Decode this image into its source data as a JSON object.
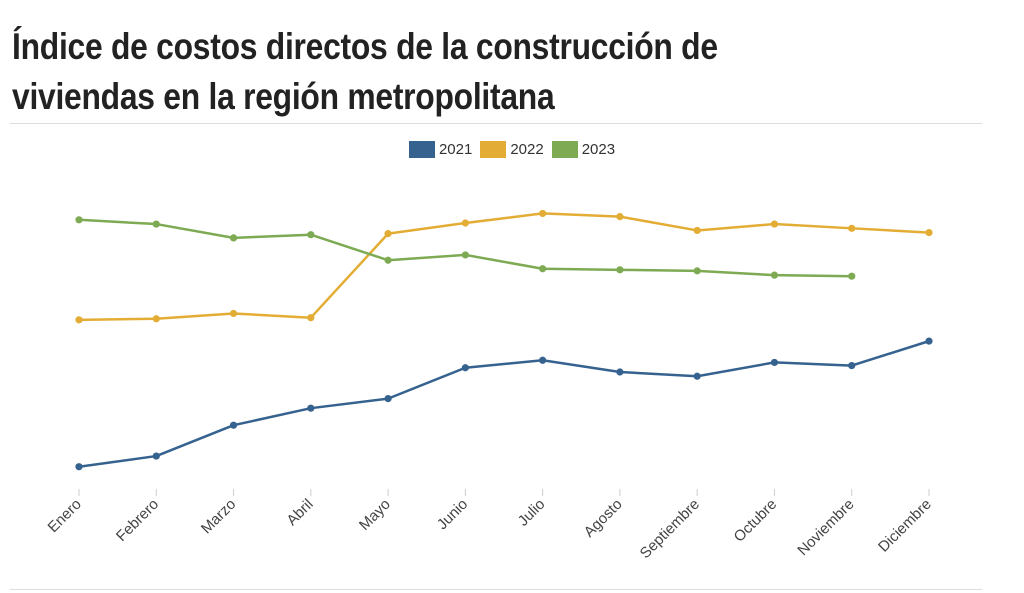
{
  "chart_data": {
    "type": "line",
    "title": "Índice de costos directos de la construcción de viviendas en la región metropolitana",
    "categories": [
      "Enero",
      "Febrero",
      "Marzo",
      "Abril",
      "Mayo",
      "Junio",
      "Julio",
      "Agosto",
      "Septiembre",
      "Octubre",
      "Noviembre",
      "Diciembre"
    ],
    "series": [
      {
        "name": "2021",
        "color": "#35628f",
        "values": [
          100.0,
          101.0,
          103.9,
          105.5,
          106.4,
          109.3,
          110.0,
          108.9,
          108.5,
          109.8,
          109.5,
          111.8
        ]
      },
      {
        "name": "2022",
        "color": "#e3ad35",
        "values": [
          113.8,
          113.9,
          114.4,
          114.0,
          121.9,
          122.9,
          123.8,
          123.5,
          122.2,
          122.8,
          122.4,
          122.0
        ]
      },
      {
        "name": "2023",
        "color": "#7daa52",
        "values": [
          123.2,
          122.8,
          121.5,
          121.8,
          119.4,
          119.9,
          118.6,
          118.5,
          118.4,
          118.0,
          117.9,
          null
        ]
      }
    ],
    "ylim": [
      98.0,
      126.0
    ],
    "grid": false,
    "legend_position": "top-center"
  }
}
